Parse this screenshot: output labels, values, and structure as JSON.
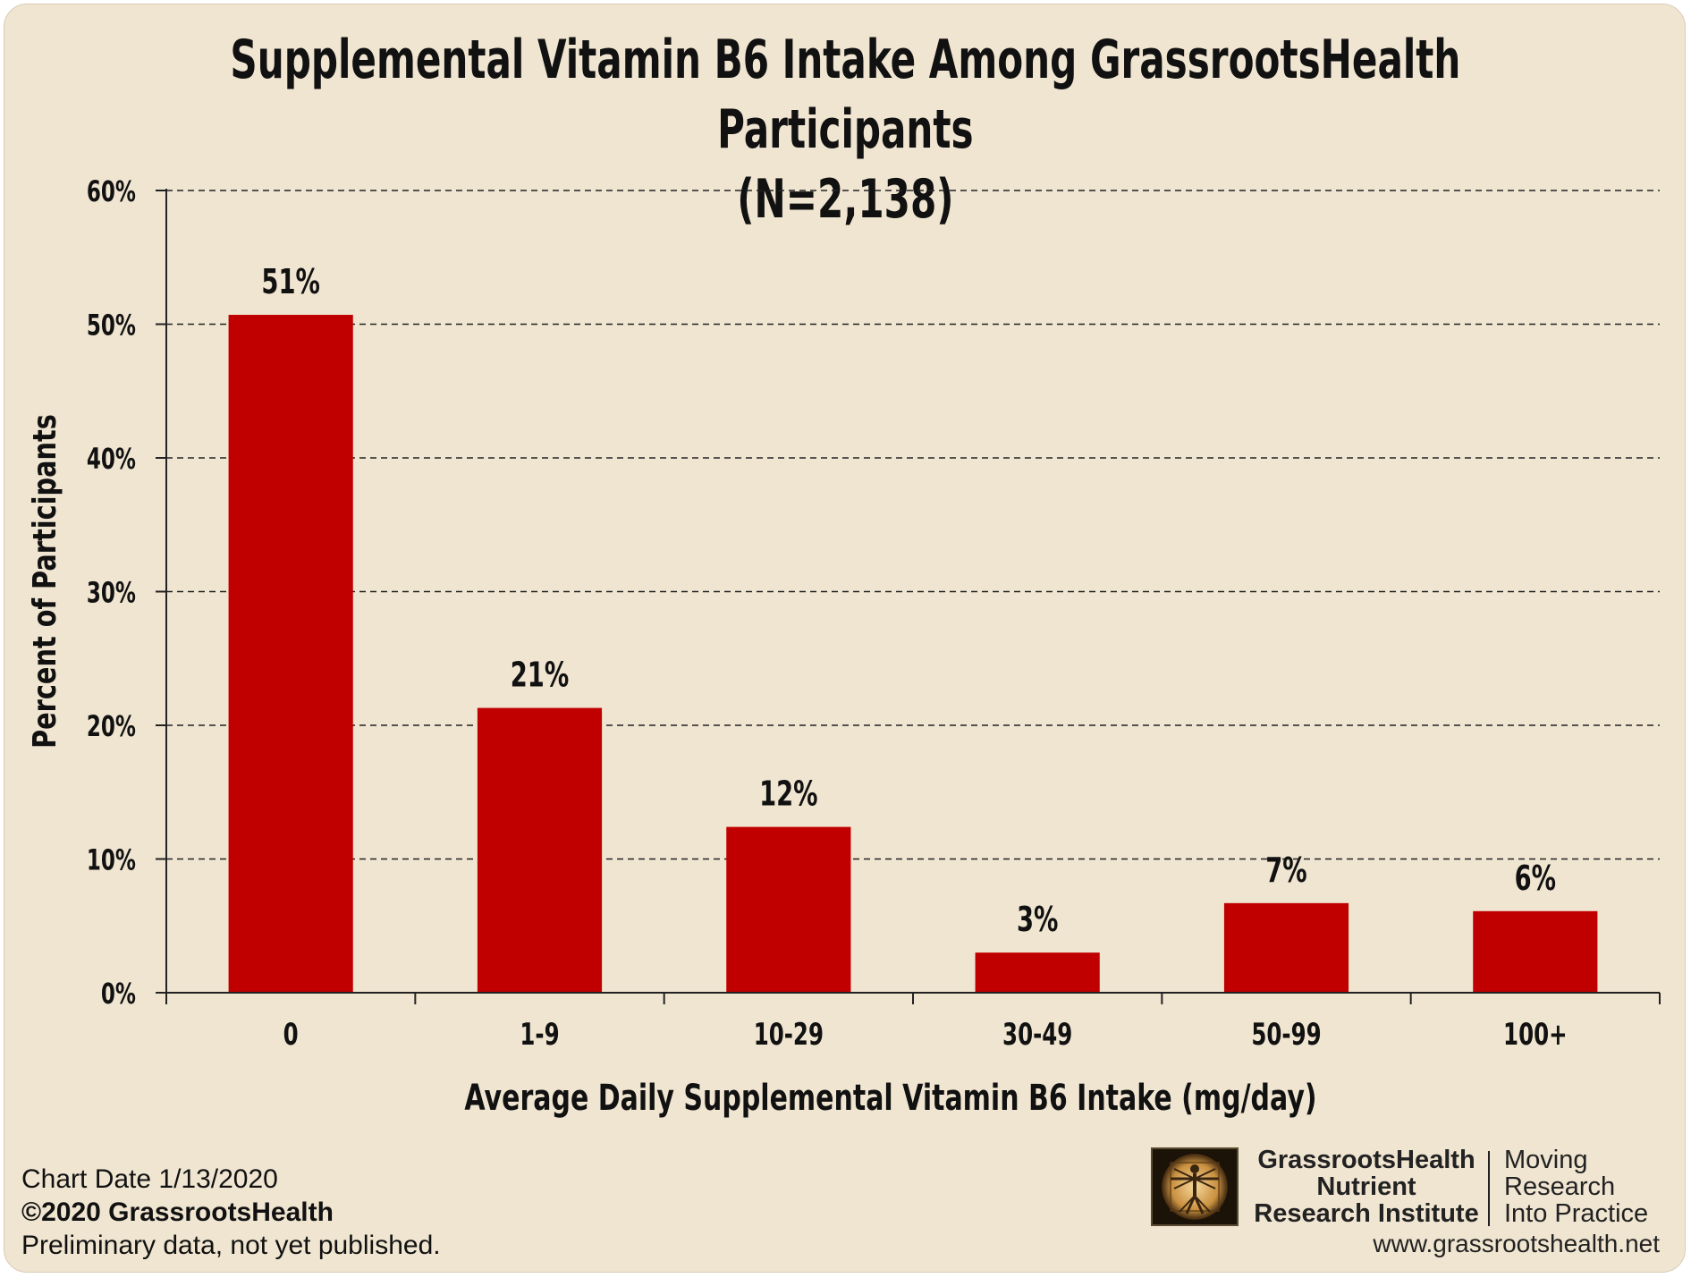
{
  "chart_data": {
    "type": "bar",
    "title": "Supplemental Vitamin B6 Intake Among GrassrootsHealth Participants",
    "subtitle": "(N=2,138)",
    "xlabel": "Average Daily Supplemental Vitamin B6 Intake (mg/day)",
    "ylabel": "Percent of Participants",
    "categories": [
      "0",
      "1-9",
      "10-29",
      "30-49",
      "50-99",
      "100+"
    ],
    "values": [
      50.7,
      21.3,
      12.4,
      3.0,
      6.7,
      6.1
    ],
    "data_labels": [
      "51%",
      "21%",
      "12%",
      "3%",
      "7%",
      "6%"
    ],
    "ylim": [
      0,
      60
    ],
    "yticks": [
      0,
      10,
      20,
      30,
      40,
      50,
      60
    ],
    "ytick_labels": [
      "0%",
      "10%",
      "20%",
      "30%",
      "40%",
      "50%",
      "60%"
    ],
    "grid": true,
    "grid_style": "dashed",
    "bar_color": "#c00000",
    "background_color": "#f0e5d1"
  },
  "footer": {
    "chart_date": "Chart Date 1/13/2020",
    "copyright": "©2020 GrassrootsHealth",
    "note": "Preliminary data, not yet published."
  },
  "branding": {
    "org_line1": "GrassrootsHealth",
    "org_line2": "Nutrient",
    "org_line3": "Research Institute",
    "tagline_line1": "Moving",
    "tagline_line2": "Research",
    "tagline_line3": "Into Practice",
    "website": "www.grassrootshealth.net",
    "logo_icon": "vitruvian-man-icon"
  }
}
